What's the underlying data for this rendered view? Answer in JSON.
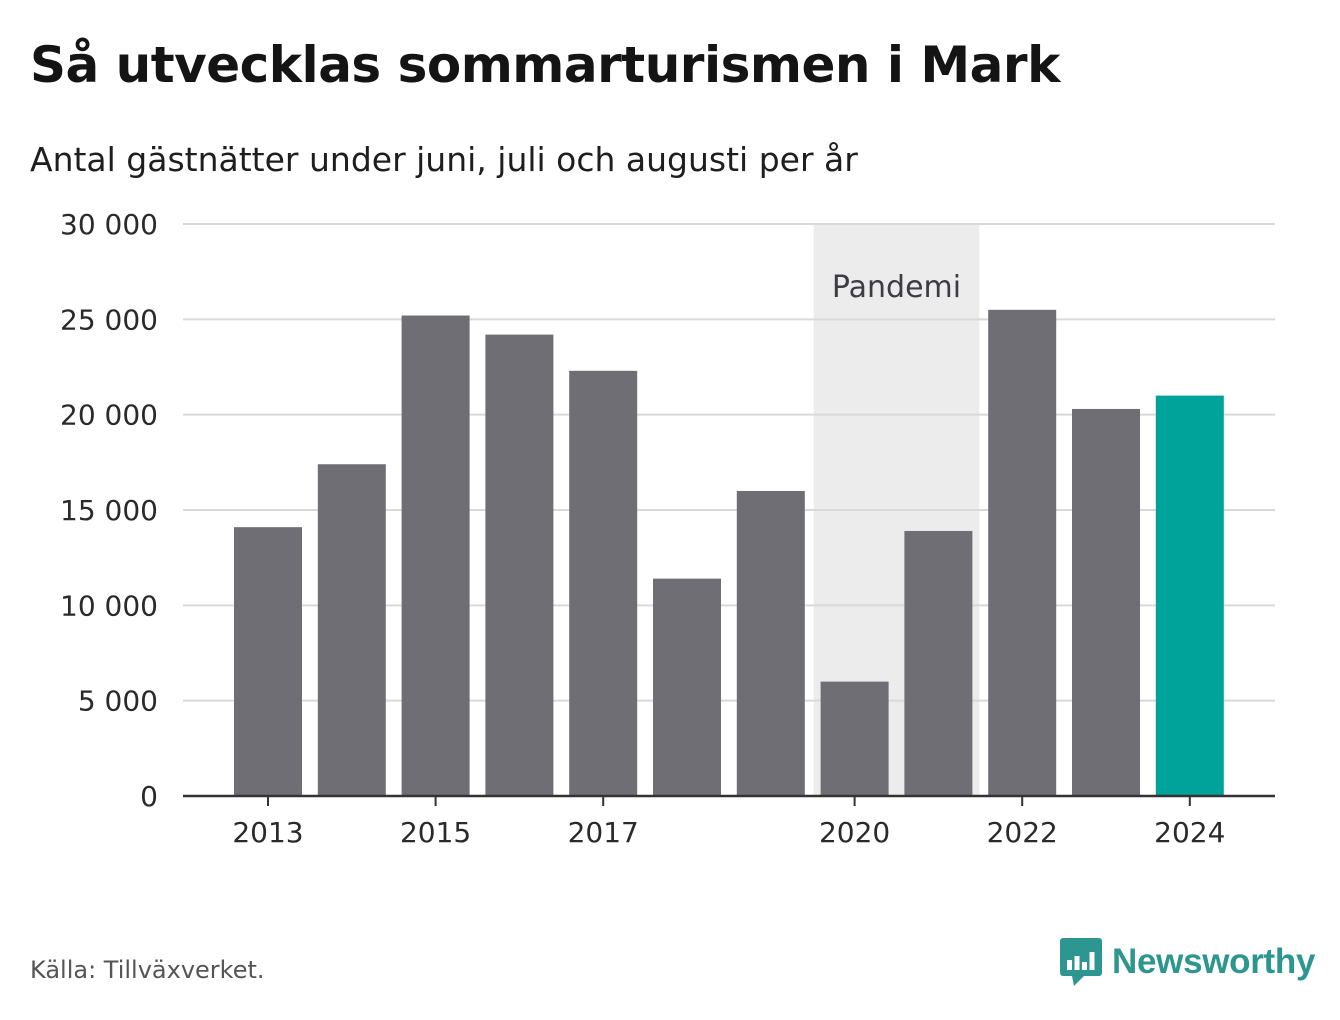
{
  "title": "Så utvecklas sommarturismen i Mark",
  "subtitle": "Antal gästnätter under juni, juli och augusti per år",
  "source": "Källa: Tillväxverket.",
  "brand": {
    "name": "Newsworthy",
    "icon": "newsworthy-logo-icon"
  },
  "colors": {
    "bar": "#6f6e74",
    "highlight": "#00a39a",
    "pandemic_band": "#ececec",
    "grid": "#d9d9d9",
    "axis": "#333333",
    "brand": "#2d9690"
  },
  "chart_data": {
    "type": "bar",
    "x": [
      2013,
      2014,
      2015,
      2016,
      2017,
      2018,
      2019,
      2020,
      2021,
      2022,
      2023,
      2024
    ],
    "values": [
      14100,
      17400,
      25200,
      24200,
      22300,
      11400,
      16000,
      6000,
      13900,
      25500,
      20300,
      21000
    ],
    "highlight": [
      2024
    ],
    "x_tick_labels": [
      "2013",
      "2015",
      "2017",
      "2020",
      "2022",
      "2024"
    ],
    "y_ticks": [
      0,
      5000,
      10000,
      15000,
      20000,
      25000,
      30000
    ],
    "y_tick_labels": [
      "0",
      "5 000",
      "10 000",
      "15 000",
      "20 000",
      "25 000",
      "30 000"
    ],
    "ylim": [
      0,
      30000
    ],
    "grid": true,
    "annotations": [
      {
        "type": "band",
        "from": 2020,
        "to": 2021,
        "label": "Pandemi"
      }
    ],
    "xlabel": "",
    "ylabel": ""
  }
}
